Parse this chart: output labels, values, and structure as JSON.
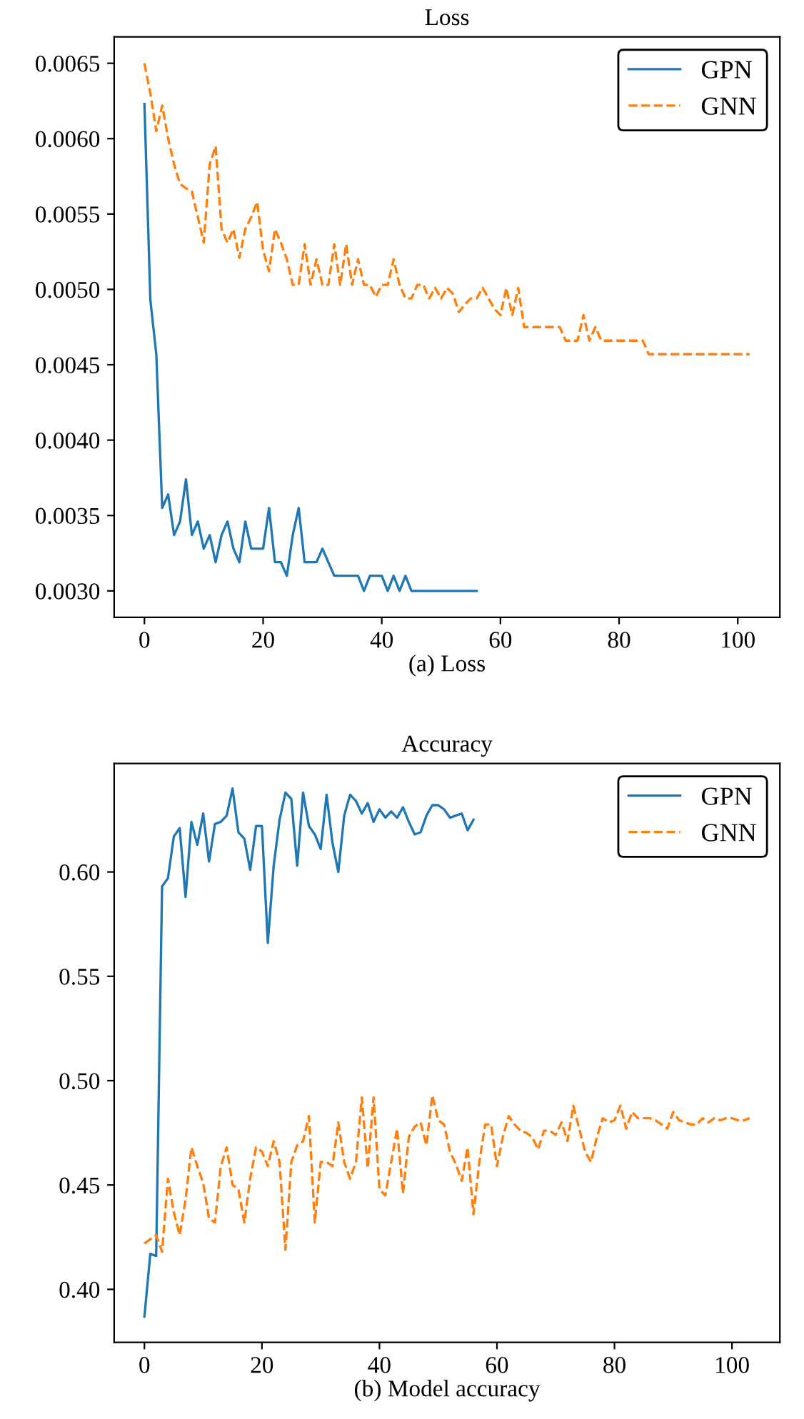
{
  "chart_data": [
    {
      "type": "line",
      "title": "Loss",
      "xlabel": "(a) Loss",
      "legend": "upper right",
      "grid": false,
      "xlim": [
        -5.1,
        107.1
      ],
      "xticks": [
        0,
        20,
        40,
        60,
        80,
        100
      ],
      "ylim": [
        0.002825,
        0.006675
      ],
      "yticks": [
        {
          "value": 0.003,
          "label": "0.0030"
        },
        {
          "value": 0.0035,
          "label": "0.0035"
        },
        {
          "value": 0.004,
          "label": "0.0040"
        },
        {
          "value": 0.0045,
          "label": "0.0045"
        },
        {
          "value": 0.005,
          "label": "0.0050"
        },
        {
          "value": 0.0055,
          "label": "0.0055"
        },
        {
          "value": 0.006,
          "label": "0.0060"
        },
        {
          "value": 0.0065,
          "label": "0.0065"
        }
      ],
      "series": [
        {
          "name": "GPN",
          "color": "#1f77b4",
          "line_style": "solid",
          "x": [
            0,
            1,
            2,
            3,
            4,
            5,
            6,
            7,
            8,
            9,
            10,
            11,
            12,
            13,
            14,
            15,
            16,
            17,
            18,
            19,
            20,
            21,
            22,
            23,
            24,
            25,
            26,
            27,
            28,
            29,
            30,
            31,
            32,
            33,
            34,
            35,
            36,
            37,
            38,
            39,
            40,
            41,
            42,
            43,
            44,
            45,
            46,
            47,
            48,
            49,
            50,
            51,
            52,
            53,
            54,
            55,
            56
          ],
          "values": [
            0.00623,
            0.00493,
            0.00457,
            0.00355,
            0.00364,
            0.00337,
            0.00346,
            0.00374,
            0.00337,
            0.00346,
            0.00328,
            0.00337,
            0.00319,
            0.00337,
            0.00346,
            0.00328,
            0.00319,
            0.00346,
            0.00328,
            0.00328,
            0.00328,
            0.00355,
            0.00319,
            0.00319,
            0.0031,
            0.00337,
            0.00355,
            0.00319,
            0.00319,
            0.00319,
            0.00328,
            0.00319,
            0.0031,
            0.0031,
            0.0031,
            0.0031,
            0.0031,
            0.003,
            0.0031,
            0.0031,
            0.0031,
            0.003,
            0.0031,
            0.003,
            0.0031,
            0.003,
            0.003,
            0.003,
            0.003,
            0.003,
            0.003,
            0.003,
            0.003,
            0.003,
            0.003,
            0.003,
            0.003
          ]
        },
        {
          "name": "GNN",
          "color": "#ff7f0e",
          "line_style": "dashed",
          "x": [
            0,
            1,
            2,
            3,
            4,
            5,
            6,
            7,
            8,
            9,
            10,
            11,
            12,
            13,
            14,
            15,
            16,
            17,
            18,
            19,
            20,
            21,
            22,
            23,
            24,
            25,
            26,
            27,
            28,
            29,
            30,
            31,
            32,
            33,
            34,
            35,
            36,
            37,
            38,
            39,
            40,
            41,
            42,
            43,
            44,
            45,
            46,
            47,
            48,
            49,
            50,
            51,
            52,
            53,
            54,
            55,
            56,
            57,
            58,
            59,
            60,
            61,
            62,
            63,
            64,
            65,
            66,
            67,
            68,
            69,
            70,
            71,
            72,
            73,
            74,
            75,
            76,
            77,
            78,
            79,
            80,
            81,
            82,
            83,
            84,
            85,
            86,
            87,
            88,
            89,
            90,
            91,
            92,
            93,
            94,
            95,
            96,
            97,
            98,
            99,
            100,
            101,
            102
          ],
          "values": [
            0.0065,
            0.0063,
            0.00605,
            0.00622,
            0.006,
            0.00583,
            0.0057,
            0.00567,
            0.00565,
            0.00548,
            0.00531,
            0.00583,
            0.00595,
            0.0054,
            0.00531,
            0.0054,
            0.00521,
            0.0054,
            0.00548,
            0.00558,
            0.00526,
            0.00512,
            0.0054,
            0.00531,
            0.0052,
            0.00503,
            0.00503,
            0.0053,
            0.00503,
            0.0052,
            0.00503,
            0.00503,
            0.0053,
            0.00503,
            0.0053,
            0.00503,
            0.0052,
            0.00503,
            0.00503,
            0.00495,
            0.00503,
            0.00503,
            0.0052,
            0.00503,
            0.00494,
            0.00494,
            0.00503,
            0.00503,
            0.00494,
            0.00501,
            0.00494,
            0.00501,
            0.00497,
            0.00485,
            0.0049,
            0.00494,
            0.00494,
            0.00501,
            0.00494,
            0.00487,
            0.00483,
            0.00501,
            0.00483,
            0.00501,
            0.00475,
            0.00475,
            0.00475,
            0.00475,
            0.00475,
            0.00475,
            0.00475,
            0.00466,
            0.00466,
            0.00466,
            0.00483,
            0.00466,
            0.00475,
            0.00466,
            0.00466,
            0.00466,
            0.00466,
            0.00466,
            0.00466,
            0.00466,
            0.00466,
            0.00457,
            0.00457,
            0.00457,
            0.00457,
            0.00457,
            0.00457,
            0.00457,
            0.00457,
            0.00457,
            0.00457,
            0.00457,
            0.00457,
            0.00457,
            0.00457,
            0.00457,
            0.00457,
            0.00457,
            0.00457
          ]
        }
      ]
    },
    {
      "type": "line",
      "title": "Accuracy",
      "xlabel": "(b) Model accuracy",
      "legend": "upper right",
      "grid": false,
      "xlim": [
        -5.15,
        108.15
      ],
      "xticks": [
        0,
        20,
        40,
        60,
        80,
        100
      ],
      "ylim": [
        0.3746,
        0.652
      ],
      "yticks": [
        {
          "value": 0.4,
          "label": "0.40"
        },
        {
          "value": 0.45,
          "label": "0.45"
        },
        {
          "value": 0.5,
          "label": "0.50"
        },
        {
          "value": 0.55,
          "label": "0.55"
        },
        {
          "value": 0.6,
          "label": "0.60"
        }
      ],
      "series": [
        {
          "name": "GPN",
          "color": "#1f77b4",
          "line_style": "solid",
          "x": [
            0,
            1,
            2,
            3,
            4,
            5,
            6,
            7,
            8,
            9,
            10,
            11,
            12,
            13,
            14,
            15,
            16,
            17,
            18,
            19,
            20,
            21,
            22,
            23,
            24,
            25,
            26,
            27,
            28,
            29,
            30,
            31,
            32,
            33,
            34,
            35,
            36,
            37,
            38,
            39,
            40,
            41,
            42,
            43,
            44,
            45,
            46,
            47,
            48,
            49,
            50,
            51,
            52,
            53,
            54,
            55,
            56
          ],
          "values": [
            0.387,
            0.417,
            0.416,
            0.593,
            0.597,
            0.617,
            0.621,
            0.588,
            0.624,
            0.613,
            0.628,
            0.605,
            0.623,
            0.624,
            0.627,
            0.64,
            0.619,
            0.616,
            0.601,
            0.622,
            0.622,
            0.566,
            0.603,
            0.625,
            0.638,
            0.635,
            0.603,
            0.638,
            0.622,
            0.618,
            0.611,
            0.637,
            0.614,
            0.6,
            0.627,
            0.637,
            0.634,
            0.628,
            0.633,
            0.624,
            0.63,
            0.626,
            0.629,
            0.626,
            0.631,
            0.624,
            0.618,
            0.619,
            0.627,
            0.632,
            0.632,
            0.63,
            0.626,
            0.627,
            0.628,
            0.62,
            0.625
          ]
        },
        {
          "name": "GNN",
          "color": "#ff7f0e",
          "line_style": "dashed",
          "x": [
            0,
            1,
            2,
            3,
            4,
            5,
            6,
            7,
            8,
            9,
            10,
            11,
            12,
            13,
            14,
            15,
            16,
            17,
            18,
            19,
            20,
            21,
            22,
            23,
            24,
            25,
            26,
            27,
            28,
            29,
            30,
            31,
            32,
            33,
            34,
            35,
            36,
            37,
            38,
            39,
            40,
            41,
            42,
            43,
            44,
            45,
            46,
            47,
            48,
            49,
            50,
            51,
            52,
            53,
            54,
            55,
            56,
            57,
            58,
            59,
            60,
            61,
            62,
            63,
            64,
            65,
            66,
            67,
            68,
            69,
            70,
            71,
            72,
            73,
            74,
            75,
            76,
            77,
            78,
            79,
            80,
            81,
            82,
            83,
            84,
            85,
            86,
            87,
            88,
            89,
            90,
            91,
            92,
            93,
            94,
            95,
            96,
            97,
            98,
            99,
            100,
            101,
            102,
            103
          ],
          "values": [
            0.422,
            0.424,
            0.426,
            0.418,
            0.453,
            0.437,
            0.426,
            0.443,
            0.468,
            0.459,
            0.451,
            0.434,
            0.432,
            0.459,
            0.468,
            0.45,
            0.448,
            0.432,
            0.453,
            0.468,
            0.466,
            0.459,
            0.471,
            0.461,
            0.419,
            0.461,
            0.469,
            0.471,
            0.483,
            0.432,
            0.461,
            0.461,
            0.459,
            0.48,
            0.461,
            0.453,
            0.461,
            0.492,
            0.458,
            0.492,
            0.448,
            0.445,
            0.461,
            0.477,
            0.446,
            0.473,
            0.478,
            0.48,
            0.469,
            0.493,
            0.481,
            0.479,
            0.466,
            0.46,
            0.452,
            0.468,
            0.436,
            0.461,
            0.479,
            0.479,
            0.459,
            0.473,
            0.483,
            0.479,
            0.476,
            0.475,
            0.473,
            0.467,
            0.476,
            0.476,
            0.474,
            0.48,
            0.471,
            0.488,
            0.477,
            0.466,
            0.461,
            0.473,
            0.482,
            0.48,
            0.481,
            0.488,
            0.477,
            0.485,
            0.482,
            0.482,
            0.482,
            0.481,
            0.479,
            0.477,
            0.485,
            0.481,
            0.48,
            0.479,
            0.479,
            0.482,
            0.48,
            0.482,
            0.481,
            0.482,
            0.482,
            0.481,
            0.481,
            0.482
          ]
        }
      ]
    }
  ]
}
